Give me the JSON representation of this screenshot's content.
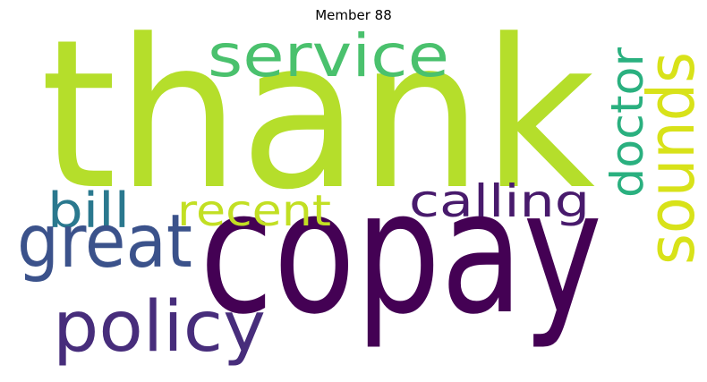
{
  "title": "Member 88",
  "words": [
    {
      "text": "thank",
      "color": "#b5de2b",
      "weight": 1.0,
      "orientation": "horizontal"
    },
    {
      "text": "copay",
      "color": "#440154",
      "weight": 0.95,
      "orientation": "horizontal"
    },
    {
      "text": "service",
      "color": "#4ac16d",
      "weight": 0.35,
      "orientation": "horizontal"
    },
    {
      "text": "sounds",
      "color": "#d8e219",
      "weight": 0.4,
      "orientation": "vertical"
    },
    {
      "text": "doctor",
      "color": "#2ab07f",
      "weight": 0.3,
      "orientation": "vertical"
    },
    {
      "text": "calling",
      "color": "#481a6c",
      "weight": 0.3,
      "orientation": "horizontal"
    },
    {
      "text": "recent",
      "color": "#c2df23",
      "weight": 0.3,
      "orientation": "horizontal"
    },
    {
      "text": "bill",
      "color": "#2a788e",
      "weight": 0.3,
      "orientation": "horizontal"
    },
    {
      "text": "great",
      "color": "#3b528b",
      "weight": 0.45,
      "orientation": "horizontal"
    },
    {
      "text": "policy",
      "color": "#472d7b",
      "weight": 0.45,
      "orientation": "horizontal"
    }
  ]
}
